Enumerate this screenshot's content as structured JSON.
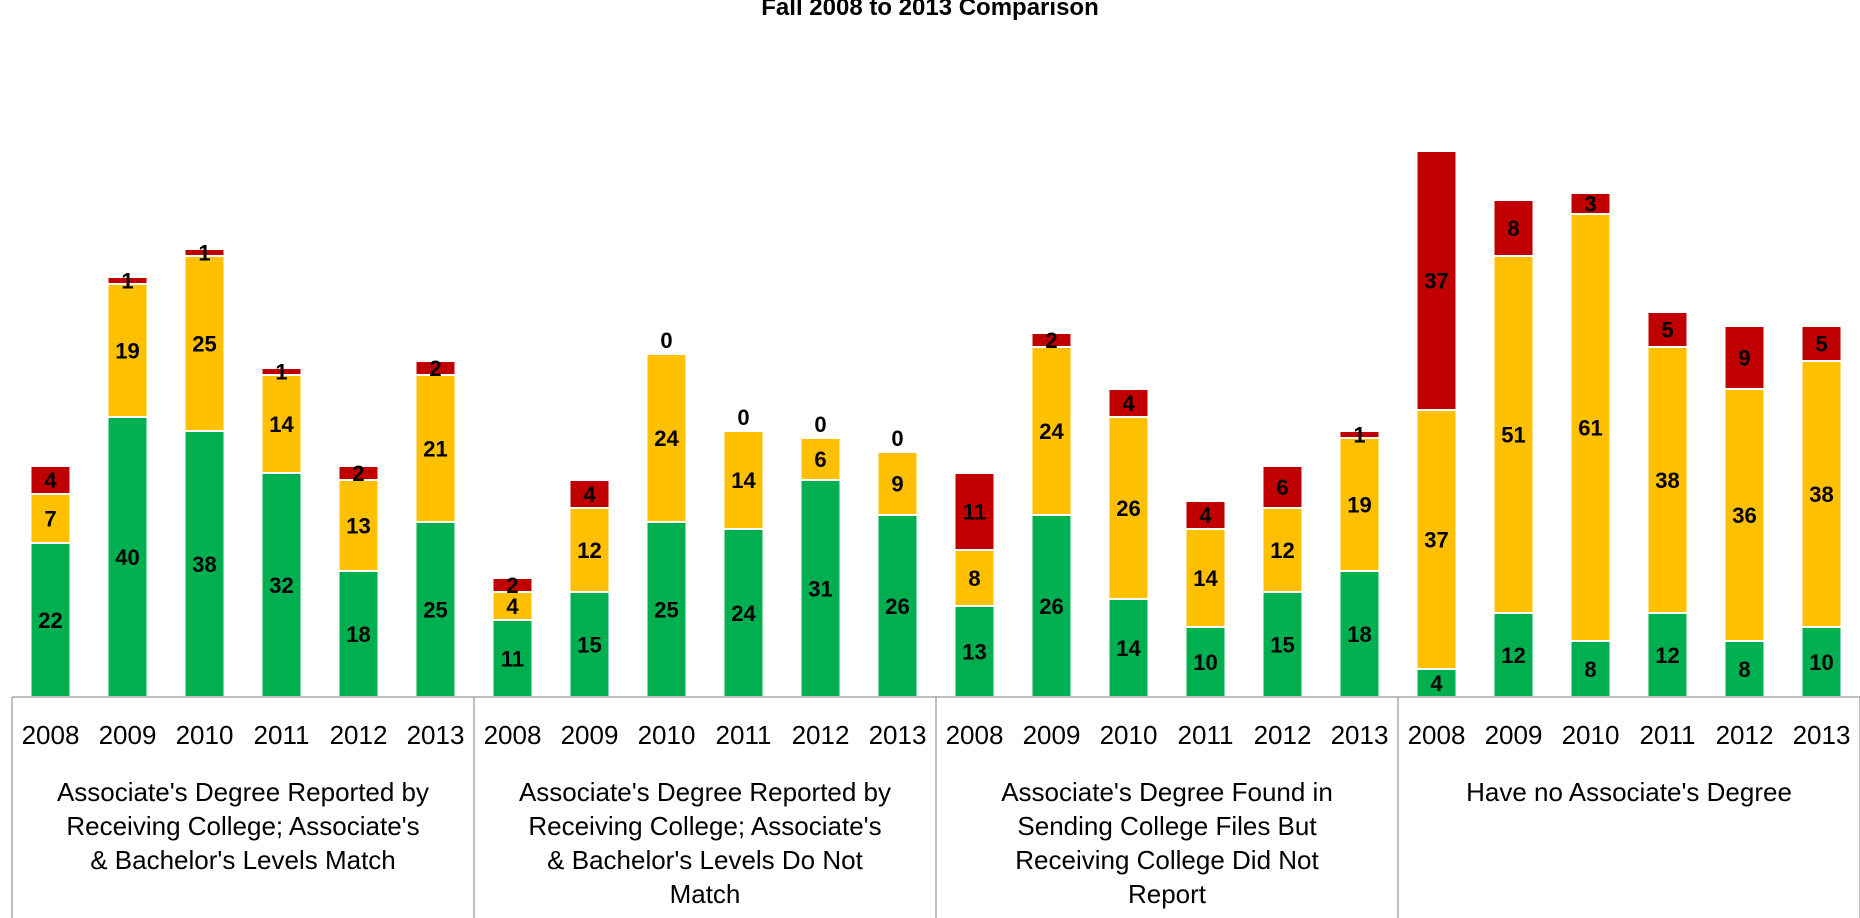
{
  "chart_data": {
    "type": "bar",
    "stacked": true,
    "title": "Fall 2008 to 2013 Comparison",
    "colors": {
      "green": "#00b050",
      "yellow": "#ffc000",
      "red": "#c00000"
    },
    "groups": [
      {
        "label_lines": [
          "Associate's Degree Reported by",
          "Receiving College; Associate's",
          "& Bachelor's Levels Match"
        ],
        "years": [
          "2008",
          "2009",
          "2010",
          "2011",
          "2012",
          "2013"
        ],
        "green": [
          22,
          40,
          38,
          32,
          18,
          25
        ],
        "yellow": [
          7,
          19,
          25,
          14,
          13,
          21
        ],
        "red": [
          4,
          1,
          1,
          1,
          2,
          2
        ]
      },
      {
        "label_lines": [
          "Associate's Degree Reported by",
          "Receiving College; Associate's",
          "& Bachelor's Levels Do Not",
          "Match"
        ],
        "years": [
          "2008",
          "2009",
          "2010",
          "2011",
          "2012",
          "2013"
        ],
        "green": [
          11,
          15,
          25,
          24,
          31,
          26
        ],
        "yellow": [
          4,
          12,
          24,
          14,
          6,
          9
        ],
        "red": [
          2,
          4,
          0,
          0,
          0,
          0
        ]
      },
      {
        "label_lines": [
          "Associate's Degree Found in",
          "Sending College Files But",
          "Receiving College Did Not",
          "Report"
        ],
        "years": [
          "2008",
          "2009",
          "2010",
          "2011",
          "2012",
          "2013"
        ],
        "green": [
          13,
          26,
          14,
          10,
          15,
          18
        ],
        "yellow": [
          8,
          24,
          26,
          14,
          12,
          19
        ],
        "red": [
          11,
          2,
          4,
          4,
          6,
          1
        ]
      },
      {
        "label_lines": [
          "Have no Associate's Degree"
        ],
        "years": [
          "2008",
          "2009",
          "2010",
          "2011",
          "2012",
          "2013"
        ],
        "green": [
          4,
          12,
          8,
          12,
          8,
          10
        ],
        "yellow": [
          37,
          51,
          61,
          38,
          36,
          38
        ],
        "red": [
          37,
          8,
          3,
          5,
          9,
          5
        ]
      }
    ]
  }
}
